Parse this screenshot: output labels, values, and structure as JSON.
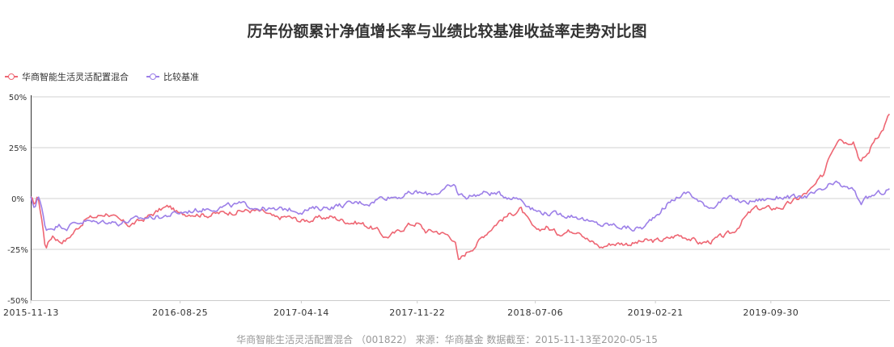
{
  "title": "历年份额累计净值增长率与业绩比较基准收益率走势对比图",
  "footer": "华商智能生活灵活配置混合 （001822） 来源：华商基金 数据截至：2015-11-13至2020-05-15",
  "chart_data": {
    "type": "line",
    "title": "历年份额累计净值增长率与业绩比较基准收益率走势对比图",
    "x_tick_labels": [
      "2015-11-13",
      "2016-08-25",
      "2017-04-14",
      "2017-11-22",
      "2018-07-06",
      "2019-02-21",
      "2019-09-30"
    ],
    "y_tick_labels": [
      "50%",
      "25%",
      "0%",
      "-25%",
      "-50%"
    ],
    "ylim": [
      -50,
      50
    ],
    "xlim": [
      "2015-11-13",
      "2020-05-15"
    ],
    "grid": "horizontal",
    "legend_position": "top-left",
    "series": [
      {
        "name": "华商智能生活灵活配置混合",
        "color": "#ee6673",
        "points": [
          [
            "2015-11-13",
            0
          ],
          [
            "2015-11-20",
            -3
          ],
          [
            "2015-11-27",
            1
          ],
          [
            "2015-12-04",
            -10
          ],
          [
            "2015-12-11",
            -24
          ],
          [
            "2015-12-25",
            -18
          ],
          [
            "2016-01-08",
            -21
          ],
          [
            "2016-01-22",
            -20
          ],
          [
            "2016-02-05",
            -16
          ],
          [
            "2016-02-26",
            -10
          ],
          [
            "2016-03-18",
            -9
          ],
          [
            "2016-04-08",
            -7
          ],
          [
            "2016-04-29",
            -11
          ],
          [
            "2016-05-20",
            -13
          ],
          [
            "2016-06-10",
            -11
          ],
          [
            "2016-07-01",
            -8
          ],
          [
            "2016-07-22",
            -5
          ],
          [
            "2016-08-05",
            -4
          ],
          [
            "2016-08-25",
            -8
          ],
          [
            "2016-09-15",
            -7
          ],
          [
            "2016-10-14",
            -8
          ],
          [
            "2016-11-18",
            -7
          ],
          [
            "2016-12-16",
            -6
          ],
          [
            "2017-01-13",
            -6
          ],
          [
            "2017-02-03",
            -7
          ],
          [
            "2017-02-24",
            -10
          ],
          [
            "2017-03-17",
            -9
          ],
          [
            "2017-04-14",
            -11
          ],
          [
            "2017-05-12",
            -10
          ],
          [
            "2017-06-09",
            -9
          ],
          [
            "2017-07-07",
            -11
          ],
          [
            "2017-08-04",
            -12
          ],
          [
            "2017-08-25",
            -14
          ],
          [
            "2017-09-08",
            -16
          ],
          [
            "2017-09-22",
            -19
          ],
          [
            "2017-10-13",
            -17
          ],
          [
            "2017-11-03",
            -13
          ],
          [
            "2017-11-22",
            -12
          ],
          [
            "2017-12-08",
            -16
          ],
          [
            "2017-12-29",
            -16
          ],
          [
            "2018-01-19",
            -18
          ],
          [
            "2018-02-02",
            -20
          ],
          [
            "2018-02-09",
            -31
          ],
          [
            "2018-02-23",
            -27
          ],
          [
            "2018-03-16",
            -22
          ],
          [
            "2018-04-06",
            -16
          ],
          [
            "2018-04-27",
            -11
          ],
          [
            "2018-05-18",
            -8
          ],
          [
            "2018-06-08",
            -5
          ],
          [
            "2018-06-22",
            -11
          ],
          [
            "2018-07-06",
            -16
          ],
          [
            "2018-07-27",
            -14
          ],
          [
            "2018-08-17",
            -17
          ],
          [
            "2018-09-07",
            -16
          ],
          [
            "2018-09-28",
            -15
          ],
          [
            "2018-10-19",
            -21
          ],
          [
            "2018-11-09",
            -24
          ],
          [
            "2018-11-30",
            -22
          ],
          [
            "2018-12-21",
            -22
          ],
          [
            "2019-01-11",
            -22
          ],
          [
            "2019-02-01",
            -21
          ],
          [
            "2019-02-21",
            -21
          ],
          [
            "2019-03-15",
            -20
          ],
          [
            "2019-04-05",
            -18
          ],
          [
            "2019-04-26",
            -19
          ],
          [
            "2019-05-17",
            -22
          ],
          [
            "2019-06-07",
            -21
          ],
          [
            "2019-06-28",
            -19
          ],
          [
            "2019-07-19",
            -17
          ],
          [
            "2019-08-09",
            -10
          ],
          [
            "2019-08-30",
            -5
          ],
          [
            "2019-09-30",
            -5
          ],
          [
            "2019-10-25",
            -4
          ],
          [
            "2019-11-22",
            0
          ],
          [
            "2019-12-20",
            5
          ],
          [
            "2020-01-10",
            12
          ],
          [
            "2020-01-17",
            20
          ],
          [
            "2020-02-07",
            31
          ],
          [
            "2020-02-21",
            28
          ],
          [
            "2020-03-06",
            29
          ],
          [
            "2020-03-20",
            18
          ],
          [
            "2020-04-03",
            22
          ],
          [
            "2020-04-17",
            30
          ],
          [
            "2020-05-01",
            34
          ],
          [
            "2020-05-15",
            42
          ]
        ]
      },
      {
        "name": "比较基准",
        "color": "#9c7fe8",
        "points": [
          [
            "2015-11-13",
            0
          ],
          [
            "2015-11-20",
            -5
          ],
          [
            "2015-11-27",
            2
          ],
          [
            "2015-12-04",
            -5
          ],
          [
            "2015-12-11",
            -15
          ],
          [
            "2015-12-25",
            -14
          ],
          [
            "2016-01-08",
            -13
          ],
          [
            "2016-01-22",
            -14
          ],
          [
            "2016-02-05",
            -12
          ],
          [
            "2016-02-26",
            -11
          ],
          [
            "2016-03-18",
            -12
          ],
          [
            "2016-04-08",
            -11
          ],
          [
            "2016-04-29",
            -12
          ],
          [
            "2016-05-20",
            -11
          ],
          [
            "2016-06-10",
            -10
          ],
          [
            "2016-07-01",
            -9
          ],
          [
            "2016-07-22",
            -9
          ],
          [
            "2016-08-05",
            -8
          ],
          [
            "2016-08-25",
            -7
          ],
          [
            "2016-09-15",
            -6
          ],
          [
            "2016-10-14",
            -5
          ],
          [
            "2016-11-18",
            -4
          ],
          [
            "2016-12-16",
            -3
          ],
          [
            "2017-01-13",
            -4
          ],
          [
            "2017-02-03",
            -5
          ],
          [
            "2017-02-24",
            -6
          ],
          [
            "2017-03-17",
            -5
          ],
          [
            "2017-04-14",
            -6
          ],
          [
            "2017-05-12",
            -5
          ],
          [
            "2017-06-09",
            -4
          ],
          [
            "2017-07-07",
            -3
          ],
          [
            "2017-08-04",
            -2
          ],
          [
            "2017-08-25",
            -2
          ],
          [
            "2017-09-08",
            0
          ],
          [
            "2017-09-22",
            1
          ],
          [
            "2017-10-13",
            1
          ],
          [
            "2017-11-03",
            2
          ],
          [
            "2017-11-22",
            3
          ],
          [
            "2017-12-08",
            2
          ],
          [
            "2017-12-29",
            3
          ],
          [
            "2018-01-19",
            5
          ],
          [
            "2018-02-02",
            6
          ],
          [
            "2018-02-09",
            2
          ],
          [
            "2018-02-23",
            1
          ],
          [
            "2018-03-16",
            2
          ],
          [
            "2018-04-06",
            3
          ],
          [
            "2018-04-27",
            2
          ],
          [
            "2018-05-18",
            1
          ],
          [
            "2018-06-08",
            0
          ],
          [
            "2018-06-22",
            -3
          ],
          [
            "2018-07-06",
            -6
          ],
          [
            "2018-07-27",
            -7
          ],
          [
            "2018-08-17",
            -8
          ],
          [
            "2018-09-07",
            -8
          ],
          [
            "2018-09-28",
            -9
          ],
          [
            "2018-10-19",
            -12
          ],
          [
            "2018-11-09",
            -13
          ],
          [
            "2018-11-30",
            -13
          ],
          [
            "2018-12-21",
            -14
          ],
          [
            "2019-01-11",
            -15
          ],
          [
            "2019-02-01",
            -14
          ],
          [
            "2019-02-21",
            -8
          ],
          [
            "2019-03-15",
            -3
          ],
          [
            "2019-04-05",
            1
          ],
          [
            "2019-04-26",
            3
          ],
          [
            "2019-05-17",
            -2
          ],
          [
            "2019-06-07",
            -4
          ],
          [
            "2019-06-28",
            -1
          ],
          [
            "2019-07-19",
            0
          ],
          [
            "2019-08-09",
            -2
          ],
          [
            "2019-08-30",
            -1
          ],
          [
            "2019-09-30",
            0
          ],
          [
            "2019-10-25",
            1
          ],
          [
            "2019-11-22",
            0
          ],
          [
            "2019-12-20",
            2
          ],
          [
            "2020-01-10",
            4
          ],
          [
            "2020-01-17",
            6
          ],
          [
            "2020-02-07",
            7
          ],
          [
            "2020-02-21",
            5
          ],
          [
            "2020-03-06",
            4
          ],
          [
            "2020-03-20",
            -2
          ],
          [
            "2020-04-03",
            0
          ],
          [
            "2020-04-17",
            2
          ],
          [
            "2020-05-01",
            3
          ],
          [
            "2020-05-15",
            5
          ]
        ]
      }
    ]
  }
}
